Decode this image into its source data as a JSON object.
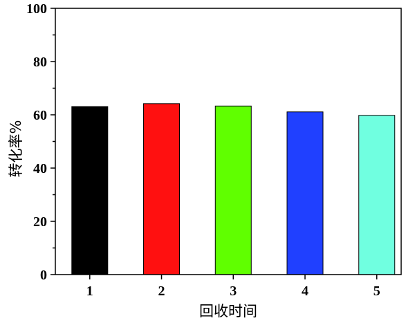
{
  "chart_data": {
    "type": "bar",
    "title": "",
    "xlabel": "回收时间",
    "ylabel": "转化率%",
    "categories": [
      "1",
      "2",
      "3",
      "4",
      "5"
    ],
    "values": [
      63.1,
      64.2,
      63.3,
      61.1,
      59.8
    ],
    "colors": [
      "#000000",
      "#ff1010",
      "#60ff00",
      "#2040ff",
      "#70ffe0"
    ],
    "ylim": [
      0,
      100
    ],
    "xlim": [
      0.52,
      5.34
    ],
    "yticks": [
      "0",
      "20",
      "40",
      "60",
      "80",
      "100"
    ],
    "grid": false,
    "legend": "none"
  }
}
